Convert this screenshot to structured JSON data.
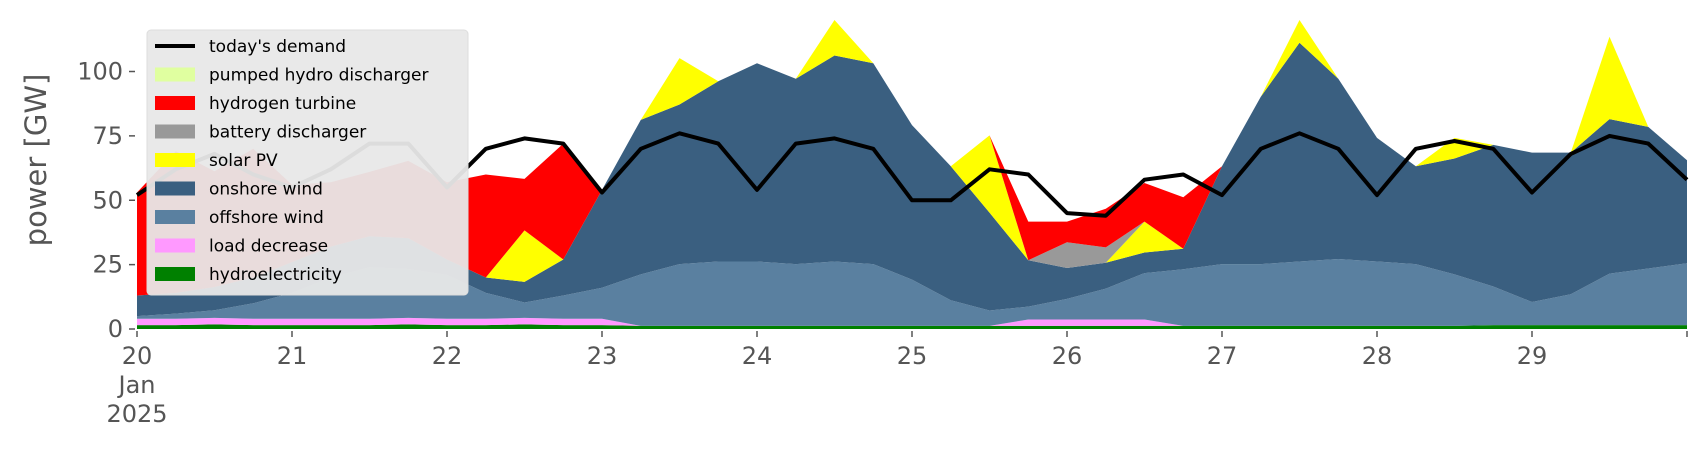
{
  "chart_data": {
    "type": "area",
    "title": "",
    "xlabel": "",
    "ylabel": "power [GW]",
    "ylim": [
      0,
      120
    ],
    "xlim": [
      "2025-01-20",
      "2025-01-30"
    ],
    "yticks": [
      0,
      25,
      50,
      75,
      100
    ],
    "xtick_labels": [
      {
        "day": "20",
        "month": "Jan",
        "year": "2025"
      },
      {
        "day": "21"
      },
      {
        "day": "22"
      },
      {
        "day": "23"
      },
      {
        "day": "24"
      },
      {
        "day": "25"
      },
      {
        "day": "26"
      },
      {
        "day": "27"
      },
      {
        "day": "28"
      },
      {
        "day": "29"
      }
    ],
    "legend": {
      "placement": "upper-left"
    },
    "grid": false,
    "x": [
      "2025-01-20T00:00",
      "2025-01-20T06:00",
      "2025-01-20T12:00",
      "2025-01-20T18:00",
      "2025-01-21T00:00",
      "2025-01-21T06:00",
      "2025-01-21T12:00",
      "2025-01-21T18:00",
      "2025-01-22T00:00",
      "2025-01-22T06:00",
      "2025-01-22T12:00",
      "2025-01-22T18:00",
      "2025-01-23T00:00",
      "2025-01-23T06:00",
      "2025-01-23T12:00",
      "2025-01-23T18:00",
      "2025-01-24T00:00",
      "2025-01-24T06:00",
      "2025-01-24T12:00",
      "2025-01-24T18:00",
      "2025-01-25T00:00",
      "2025-01-25T06:00",
      "2025-01-25T12:00",
      "2025-01-25T18:00",
      "2025-01-26T00:00",
      "2025-01-26T06:00",
      "2025-01-26T12:00",
      "2025-01-26T18:00",
      "2025-01-27T00:00",
      "2025-01-27T06:00",
      "2025-01-27T12:00",
      "2025-01-27T18:00",
      "2025-01-28T00:00",
      "2025-01-28T06:00",
      "2025-01-28T12:00",
      "2025-01-28T18:00",
      "2025-01-29T00:00",
      "2025-01-29T06:00",
      "2025-01-29T12:00",
      "2025-01-29T18:00",
      "2025-01-30T00:00"
    ],
    "series": [
      {
        "name": "hydroelectricity",
        "color": "#008000",
        "values": [
          1.5,
          1.5,
          1.8,
          1.5,
          1.5,
          1.5,
          1.5,
          1.8,
          1.5,
          1.5,
          1.8,
          1.5,
          1.5,
          1.2,
          1.2,
          1.2,
          1.2,
          1.2,
          1.2,
          1.2,
          1.2,
          1.2,
          1.2,
          1.2,
          1.2,
          1.2,
          1.2,
          1.2,
          1.2,
          1.2,
          1.2,
          1.2,
          1.2,
          1.2,
          1.2,
          1.5,
          1.5,
          1.5,
          1.5,
          1.5,
          1.5
        ]
      },
      {
        "name": "load decrease",
        "color": "#ff99ff",
        "values": [
          2.5,
          2.5,
          2.5,
          2.5,
          2.5,
          2.5,
          2.5,
          2.5,
          2.5,
          2.5,
          2.5,
          2.5,
          2.5,
          0,
          0,
          0,
          0,
          0,
          0,
          0,
          0,
          0,
          0,
          2.5,
          2.5,
          2.5,
          2.5,
          0,
          0,
          0,
          0,
          0,
          0,
          0,
          0,
          0,
          0,
          0,
          0,
          0,
          0
        ]
      },
      {
        "name": "offshore wind",
        "color": "#5a80a0",
        "values": [
          1,
          2,
          3,
          6,
          10,
          16,
          20,
          19,
          17,
          10,
          6,
          9,
          12,
          20,
          24,
          25,
          25,
          24,
          25,
          24,
          18,
          10,
          6,
          5,
          8,
          12,
          18,
          22,
          24,
          24,
          25,
          26,
          25,
          24,
          20,
          15,
          9,
          12,
          20,
          22,
          24
        ]
      },
      {
        "name": "onshore wind",
        "color": "#3a5f80",
        "values": [
          8,
          8,
          9,
          10,
          12,
          12,
          12,
          12,
          6,
          6,
          8,
          14,
          38,
          60,
          62,
          70,
          77,
          72,
          80,
          78,
          60,
          52,
          38,
          18,
          12,
          10,
          8,
          8,
          38,
          65,
          85,
          70,
          48,
          38,
          45,
          55,
          58,
          55,
          60,
          55,
          40
        ]
      },
      {
        "name": "solar PV",
        "color": "#ffff00",
        "values": [
          0,
          0,
          0,
          0,
          0,
          0,
          0,
          0,
          0,
          0,
          20,
          0,
          0,
          0,
          18,
          0,
          0,
          0,
          26,
          0,
          0,
          0,
          30,
          0,
          0,
          0,
          12,
          0,
          0,
          0,
          12,
          0,
          0,
          0,
          8,
          0,
          0,
          0,
          32,
          0,
          0
        ]
      },
      {
        "name": "battery discharger",
        "color": "#999999",
        "values": [
          0,
          0,
          0,
          0,
          0,
          0,
          0,
          0,
          0,
          0,
          0,
          0,
          0,
          0,
          0,
          0,
          0,
          0,
          0,
          0,
          0,
          0,
          0,
          0,
          10,
          6,
          0,
          0,
          0,
          0,
          0,
          0,
          0,
          0,
          0,
          0,
          0,
          0,
          0,
          0,
          0
        ]
      },
      {
        "name": "hydrogen turbine",
        "color": "#ff0000",
        "values": [
          40,
          55,
          45,
          50,
          30,
          25,
          25,
          30,
          30,
          40,
          20,
          45,
          0,
          0,
          0,
          0,
          0,
          0,
          0,
          0,
          0,
          0,
          0,
          15,
          8,
          15,
          15,
          20,
          0,
          0,
          0,
          0,
          0,
          0,
          0,
          0,
          0,
          0,
          0,
          0,
          0
        ]
      },
      {
        "name": "pumped hydro discharger",
        "color": "#e0ffa0",
        "values": [
          0,
          0,
          0,
          0,
          0,
          0,
          0,
          0,
          0,
          0,
          0,
          0,
          0,
          0,
          0,
          0,
          0,
          0,
          0,
          0,
          0,
          0,
          0,
          0,
          0,
          0,
          0,
          0,
          0,
          0,
          0,
          0,
          0,
          0,
          0,
          0,
          0,
          0,
          0,
          0,
          0
        ]
      },
      {
        "name": "today's demand",
        "color": "#000000",
        "kind": "line",
        "values": [
          52,
          62,
          68,
          60,
          55,
          62,
          72,
          72,
          55,
          70,
          74,
          72,
          53,
          70,
          76,
          72,
          54,
          72,
          74,
          70,
          50,
          50,
          62,
          60,
          45,
          44,
          58,
          60,
          52,
          70,
          76,
          70,
          52,
          70,
          73,
          70,
          53,
          68,
          75,
          72,
          58
        ]
      }
    ]
  }
}
